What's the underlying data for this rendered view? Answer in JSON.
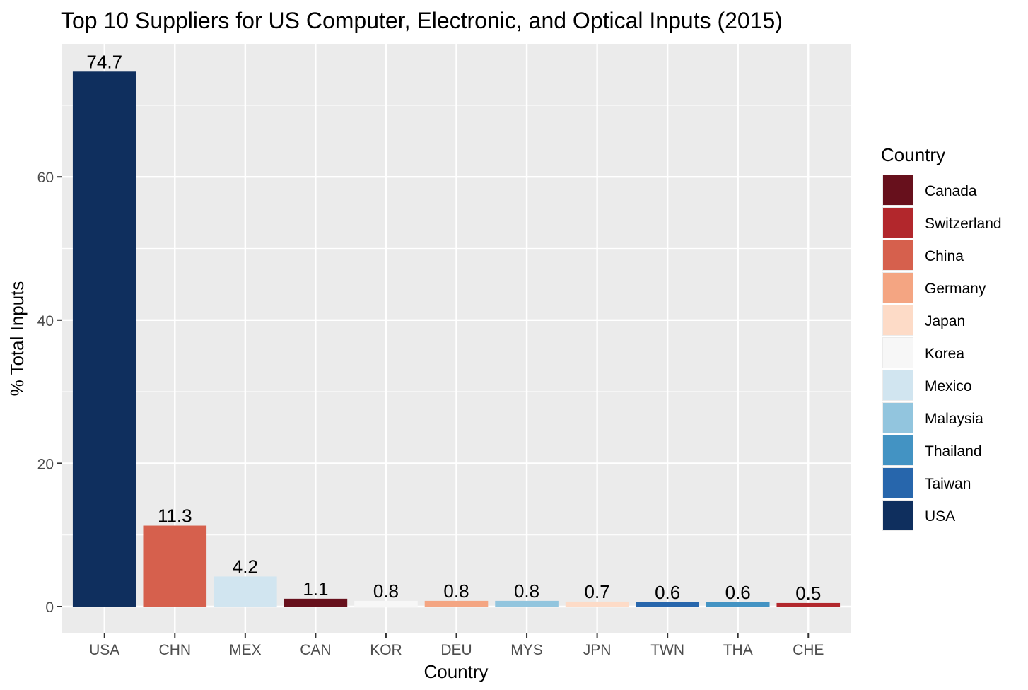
{
  "chart_data": {
    "type": "bar",
    "title": "Top 10 Suppliers for US Computer, Electronic, and Optical Inputs (2015)",
    "xlabel": "Country",
    "ylabel": "% Total Inputs",
    "ylim": [
      0,
      78.4
    ],
    "yticks": [
      0,
      20,
      40,
      60
    ],
    "grid": true,
    "categories": [
      "USA",
      "CHN",
      "MEX",
      "CAN",
      "KOR",
      "DEU",
      "MYS",
      "JPN",
      "TWN",
      "THA",
      "CHE"
    ],
    "values": [
      74.7,
      11.3,
      4.2,
      1.1,
      0.8,
      0.8,
      0.8,
      0.7,
      0.6,
      0.6,
      0.5
    ],
    "data_labels": [
      "74.7",
      "11.3",
      "4.2",
      "1.1",
      "0.8",
      "0.8",
      "0.8",
      "0.7",
      "0.6",
      "0.6",
      "0.5"
    ],
    "bar_colors": [
      "#0F2F5E",
      "#D6604D",
      "#D1E5F0",
      "#67101C",
      "#F7F7F7",
      "#F4A582",
      "#92C5DE",
      "#FDDBC7",
      "#2766AC",
      "#4393C3",
      "#B2272C"
    ],
    "legend": {
      "title": "Country",
      "position": "right",
      "entries": [
        {
          "label": "Canada",
          "color": "#67101C"
        },
        {
          "label": "Switzerland",
          "color": "#B2272C"
        },
        {
          "label": "China",
          "color": "#D6604D"
        },
        {
          "label": "Germany",
          "color": "#F4A582"
        },
        {
          "label": "Japan",
          "color": "#FDDBC7"
        },
        {
          "label": "Korea",
          "color": "#F7F7F7"
        },
        {
          "label": "Mexico",
          "color": "#D1E5F0"
        },
        {
          "label": "Malaysia",
          "color": "#92C5DE"
        },
        {
          "label": "Thailand",
          "color": "#4393C3"
        },
        {
          "label": "Taiwan",
          "color": "#2766AC"
        },
        {
          "label": "USA",
          "color": "#0F2F5E"
        }
      ]
    }
  }
}
